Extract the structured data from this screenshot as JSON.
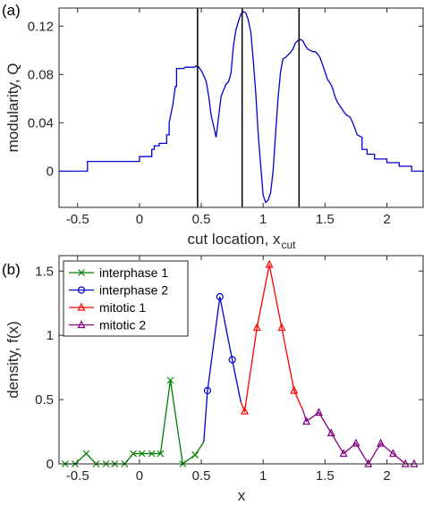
{
  "chart_data": [
    {
      "type": "line",
      "panel_label": "(a)",
      "xlabel": "cut location, x",
      "xlabel_sub": "cut",
      "ylabel": "modularity, Q",
      "xlim": [
        -0.65,
        2.3
      ],
      "ylim": [
        -0.03,
        0.135
      ],
      "xticks": [
        -0.5,
        0,
        0.5,
        1,
        1.5,
        2
      ],
      "xtick_labels": [
        "-0.5",
        "0",
        "0.5",
        "1",
        "1.5",
        "2"
      ],
      "yticks": [
        0,
        0.04,
        0.08,
        0.12
      ],
      "ytick_labels": [
        "0",
        "0.04",
        "0.08",
        "0.12"
      ],
      "vlines": [
        0.47,
        0.83,
        1.29
      ],
      "line_color": "#0000cc",
      "x": [
        -0.65,
        -0.42,
        -0.42,
        0,
        0,
        0.1,
        0.1,
        0.12,
        0.12,
        0.16,
        0.16,
        0.22,
        0.22,
        0.24,
        0.24,
        0.27,
        0.29,
        0.3,
        0.3,
        0.33,
        0.33,
        0.36,
        0.36,
        0.37,
        0.38,
        0.4,
        0.42,
        0.44,
        0.46,
        0.48,
        0.5,
        0.52,
        0.54,
        0.56,
        0.58,
        0.6,
        0.62,
        0.64,
        0.66,
        0.68,
        0.7,
        0.72,
        0.74,
        0.76,
        0.78,
        0.8,
        0.82,
        0.84,
        0.86,
        0.88,
        0.9,
        0.92,
        0.94,
        0.96,
        0.98,
        1.0,
        1.02,
        1.04,
        1.06,
        1.08,
        1.1,
        1.12,
        1.14,
        1.16,
        1.18,
        1.2,
        1.22,
        1.24,
        1.26,
        1.28,
        1.3,
        1.32,
        1.34,
        1.36,
        1.38,
        1.4,
        1.42,
        1.44,
        1.46,
        1.48,
        1.5,
        1.52,
        1.54,
        1.56,
        1.58,
        1.6,
        1.62,
        1.64,
        1.66,
        1.68,
        1.7,
        1.72,
        1.74,
        1.76,
        1.8,
        1.8,
        1.84,
        1.84,
        1.9,
        1.9,
        2.0,
        2.0,
        2.1,
        2.1,
        2.15,
        2.15,
        2.2,
        2.2,
        2.3
      ],
      "y": [
        0,
        0,
        0.008,
        0.008,
        0.012,
        0.012,
        0.018,
        0.018,
        0.021,
        0.021,
        0.023,
        0.023,
        0.03,
        0.03,
        0.04,
        0.055,
        0.07,
        0.07,
        0.085,
        0.085,
        0.085,
        0.085,
        0.085,
        0.086,
        0.086,
        0.086,
        0.086,
        0.086,
        0.087,
        0.086,
        0.083,
        0.079,
        0.074,
        0.062,
        0.046,
        0.037,
        0.028,
        0.045,
        0.062,
        0.067,
        0.072,
        0.074,
        0.081,
        0.104,
        0.117,
        0.124,
        0.13,
        0.132,
        0.131,
        0.125,
        0.115,
        0.092,
        0.065,
        0.03,
        0.005,
        -0.02,
        -0.026,
        -0.024,
        -0.018,
        0.0,
        0.03,
        0.06,
        0.082,
        0.093,
        0.094,
        0.096,
        0.098,
        0.101,
        0.106,
        0.108,
        0.109,
        0.108,
        0.104,
        0.101,
        0.1,
        0.099,
        0.099,
        0.097,
        0.094,
        0.088,
        0.082,
        0.076,
        0.073,
        0.069,
        0.062,
        0.057,
        0.054,
        0.051,
        0.048,
        0.046,
        0.045,
        0.041,
        0.036,
        0.03,
        0.028,
        0.018,
        0.018,
        0.014,
        0.014,
        0.01,
        0.01,
        0.007,
        0.007,
        0.004,
        0.004,
        0.004,
        0.004,
        0,
        0
      ]
    },
    {
      "type": "line",
      "panel_label": "(b)",
      "xlabel": "x",
      "ylabel": "density, f(x)",
      "xlim": [
        -0.65,
        2.3
      ],
      "ylim": [
        0,
        1.62
      ],
      "xticks": [
        -0.5,
        0,
        0.5,
        1,
        1.5,
        2
      ],
      "xtick_labels": [
        "-0.5",
        "0",
        "0.5",
        "1",
        "1.5",
        "2"
      ],
      "yticks": [
        0,
        0.5,
        1,
        1.5
      ],
      "ytick_labels": [
        "0",
        "0.5",
        "1",
        "1.5"
      ],
      "legend_position": "top-left",
      "series": [
        {
          "name": "interphase 1",
          "color": "#008000",
          "marker": "x",
          "x": [
            -0.6,
            -0.52,
            -0.43,
            -0.35,
            -0.27,
            -0.2,
            -0.12,
            -0.05,
            0.02,
            0.1,
            0.17,
            0.25,
            0.35,
            0.45,
            0.52
          ],
          "y": [
            0.0,
            0.0,
            0.08,
            0.0,
            0.0,
            0.0,
            0.0,
            0.08,
            0.08,
            0.08,
            0.08,
            0.65,
            0.0,
            0.07,
            0.17
          ]
        },
        {
          "name": "interphase 2",
          "color": "#0000cc",
          "marker": "o",
          "x": [
            0.52,
            0.55,
            0.65,
            0.75,
            0.82
          ],
          "y": [
            0.17,
            0.57,
            1.3,
            0.81,
            0.48
          ]
        },
        {
          "name": "mitotic 1",
          "color": "#ff0000",
          "marker": "^",
          "x": [
            0.82,
            0.85,
            0.95,
            1.05,
            1.15,
            1.25,
            1.32
          ],
          "y": [
            0.48,
            0.41,
            1.06,
            1.55,
            1.06,
            0.57,
            0.42
          ]
        },
        {
          "name": "mitotic 2",
          "color": "#800080",
          "marker": "^",
          "x": [
            1.32,
            1.35,
            1.45,
            1.55,
            1.65,
            1.75,
            1.85,
            1.95,
            2.05,
            2.15,
            2.22
          ],
          "y": [
            0.42,
            0.33,
            0.4,
            0.24,
            0.08,
            0.16,
            0.0,
            0.16,
            0.08,
            0.0,
            0.0
          ]
        }
      ]
    }
  ]
}
